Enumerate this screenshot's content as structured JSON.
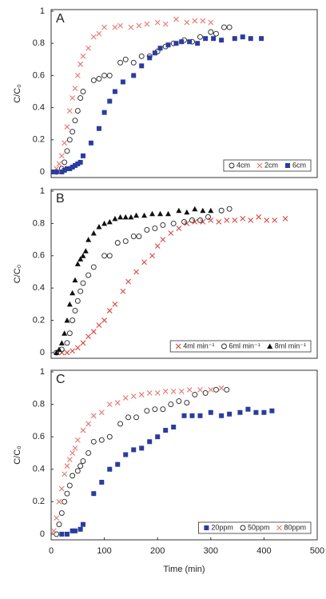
{
  "chart_data": [
    {
      "type": "scatter",
      "annotation": "A",
      "ylabel": "C/C₀",
      "xlim": [
        0,
        500
      ],
      "ylim": [
        -0.035,
        1.01
      ],
      "yticks": [
        0,
        0.2,
        0.4,
        0.6,
        0.8,
        1
      ],
      "legend": "lower right",
      "series": [
        {
          "name": "4cm",
          "marker": "circle",
          "color": "#222222",
          "x": [
            10,
            20,
            25,
            30,
            35,
            40,
            45,
            50,
            55,
            60,
            80,
            90,
            100,
            110,
            130,
            140,
            155,
            170,
            185,
            200,
            215,
            230,
            250,
            265,
            280,
            300,
            310,
            325,
            335
          ],
          "values": [
            0,
            0.02,
            0.06,
            0.13,
            0.2,
            0.25,
            0.32,
            0.38,
            0.46,
            0.5,
            0.57,
            0.58,
            0.6,
            0.6,
            0.68,
            0.7,
            0.68,
            0.72,
            0.72,
            0.75,
            0.78,
            0.8,
            0.82,
            0.81,
            0.84,
            0.87,
            0.86,
            0.9,
            0.9
          ]
        },
        {
          "name": "2cm",
          "marker": "x",
          "color": "#e8756e",
          "x": [
            10,
            15,
            20,
            25,
            30,
            35,
            40,
            45,
            50,
            55,
            60,
            70,
            80,
            90,
            100,
            120,
            130,
            150,
            165,
            180,
            200,
            215,
            235,
            255,
            270,
            285,
            300
          ],
          "values": [
            0.02,
            0.05,
            0.1,
            0.18,
            0.28,
            0.38,
            0.46,
            0.52,
            0.6,
            0.67,
            0.72,
            0.77,
            0.84,
            0.86,
            0.9,
            0.9,
            0.91,
            0.9,
            0.91,
            0.92,
            0.93,
            0.92,
            0.95,
            0.93,
            0.94,
            0.94,
            0.93
          ]
        },
        {
          "name": "6cm",
          "marker": "square",
          "color": "#2b3c9e",
          "x": [
            5,
            10,
            20,
            25,
            30,
            35,
            40,
            45,
            50,
            55,
            60,
            75,
            90,
            100,
            110,
            120,
            135,
            155,
            170,
            185,
            195,
            205,
            220,
            235,
            245,
            260,
            275,
            290,
            305,
            320,
            345,
            360,
            375,
            395
          ],
          "values": [
            0,
            0,
            0,
            0.01,
            0.02,
            0.02,
            0.03,
            0.04,
            0.05,
            0.06,
            0.1,
            0.18,
            0.27,
            0.37,
            0.44,
            0.5,
            0.56,
            0.6,
            0.66,
            0.71,
            0.74,
            0.77,
            0.79,
            0.8,
            0.81,
            0.81,
            0.8,
            0.83,
            0.83,
            0.82,
            0.83,
            0.84,
            0.83,
            0.83
          ]
        }
      ]
    },
    {
      "type": "scatter",
      "annotation": "B",
      "ylabel": "C/C₀",
      "xlim": [
        0,
        500
      ],
      "ylim": [
        -0.035,
        1.01
      ],
      "yticks": [
        0,
        0.2,
        0.4,
        0.6,
        0.8,
        1
      ],
      "legend": "lower right",
      "series": [
        {
          "name": "4ml min⁻¹",
          "marker": "x",
          "color": "#d9463e",
          "x": [
            20,
            30,
            40,
            50,
            60,
            70,
            80,
            90,
            100,
            110,
            120,
            135,
            145,
            160,
            175,
            190,
            200,
            210,
            225,
            240,
            255,
            270,
            285,
            300,
            315,
            330,
            345,
            360,
            375,
            390,
            405,
            420,
            440
          ],
          "values": [
            0,
            0,
            0.01,
            0.03,
            0.06,
            0.1,
            0.13,
            0.17,
            0.2,
            0.26,
            0.3,
            0.38,
            0.44,
            0.5,
            0.56,
            0.6,
            0.66,
            0.7,
            0.74,
            0.77,
            0.8,
            0.81,
            0.81,
            0.82,
            0.81,
            0.82,
            0.82,
            0.83,
            0.82,
            0.84,
            0.82,
            0.82,
            0.83
          ]
        },
        {
          "name": "6ml min⁻¹",
          "marker": "circle",
          "color": "#222222",
          "x": [
            10,
            20,
            30,
            35,
            40,
            45,
            50,
            55,
            60,
            70,
            80,
            100,
            110,
            125,
            140,
            155,
            165,
            180,
            195,
            210,
            230,
            250,
            265,
            280,
            295,
            320,
            335
          ],
          "values": [
            0,
            0.02,
            0.06,
            0.12,
            0.2,
            0.26,
            0.32,
            0.38,
            0.43,
            0.48,
            0.53,
            0.6,
            0.6,
            0.68,
            0.69,
            0.72,
            0.72,
            0.76,
            0.77,
            0.79,
            0.8,
            0.81,
            0.82,
            0.82,
            0.84,
            0.88,
            0.89
          ]
        },
        {
          "name": "8ml min⁻¹",
          "marker": "triangle",
          "color": "#111111",
          "x": [
            10,
            15,
            20,
            25,
            30,
            35,
            40,
            45,
            50,
            55,
            60,
            65,
            70,
            80,
            90,
            100,
            110,
            120,
            130,
            140,
            150,
            160,
            175,
            190,
            205,
            220,
            240,
            255,
            270,
            285,
            300
          ],
          "values": [
            0,
            0.02,
            0.06,
            0.12,
            0.2,
            0.3,
            0.37,
            0.45,
            0.55,
            0.58,
            0.6,
            0.63,
            0.7,
            0.74,
            0.78,
            0.8,
            0.81,
            0.83,
            0.84,
            0.84,
            0.84,
            0.85,
            0.85,
            0.86,
            0.86,
            0.86,
            0.88,
            0.87,
            0.89,
            0.88,
            0.88
          ]
        }
      ]
    },
    {
      "type": "scatter",
      "annotation": "C",
      "ylabel": "C/C₀",
      "xlabel": "Time (min)",
      "xlim": [
        0,
        500
      ],
      "ylim": [
        -0.035,
        1.01
      ],
      "xticks": [
        0,
        100,
        200,
        300,
        400,
        500
      ],
      "yticks": [
        0,
        0.2,
        0.4,
        0.6,
        0.8,
        1
      ],
      "legend": "lower right",
      "series": [
        {
          "name": "20ppm",
          "marker": "square",
          "color": "#2b3c9e",
          "x": [
            20,
            30,
            40,
            45,
            55,
            60,
            80,
            95,
            110,
            125,
            140,
            155,
            170,
            185,
            200,
            215,
            230,
            250,
            265,
            280,
            300,
            320,
            335,
            355,
            370,
            385,
            400,
            415
          ],
          "values": [
            0,
            0,
            0.02,
            0.02,
            0.03,
            0.06,
            0.25,
            0.32,
            0.4,
            0.43,
            0.49,
            0.52,
            0.53,
            0.57,
            0.6,
            0.64,
            0.66,
            0.73,
            0.73,
            0.73,
            0.75,
            0.73,
            0.74,
            0.75,
            0.77,
            0.75,
            0.75,
            0.76
          ]
        },
        {
          "name": "50ppm",
          "marker": "circle",
          "color": "#222222",
          "x": [
            10,
            15,
            20,
            25,
            30,
            35,
            40,
            50,
            55,
            60,
            70,
            80,
            95,
            110,
            130,
            145,
            160,
            180,
            195,
            210,
            225,
            240,
            255,
            270,
            290,
            310,
            330
          ],
          "values": [
            0,
            0.06,
            0.13,
            0.2,
            0.25,
            0.3,
            0.36,
            0.39,
            0.42,
            0.45,
            0.5,
            0.57,
            0.58,
            0.6,
            0.68,
            0.72,
            0.72,
            0.76,
            0.77,
            0.77,
            0.8,
            0.82,
            0.81,
            0.86,
            0.87,
            0.89,
            0.89
          ]
        },
        {
          "name": "80ppm",
          "marker": "x",
          "color": "#e8756e",
          "x": [
            5,
            10,
            15,
            20,
            25,
            30,
            35,
            40,
            45,
            50,
            60,
            70,
            80,
            95,
            110,
            125,
            140,
            155,
            170,
            185,
            200,
            215,
            230,
            245,
            260,
            280,
            300,
            320
          ],
          "values": [
            0.02,
            0.1,
            0.2,
            0.28,
            0.37,
            0.42,
            0.46,
            0.5,
            0.53,
            0.58,
            0.64,
            0.68,
            0.73,
            0.75,
            0.8,
            0.81,
            0.84,
            0.85,
            0.86,
            0.87,
            0.87,
            0.88,
            0.88,
            0.88,
            0.89,
            0.89,
            0.89,
            0.9
          ]
        }
      ]
    }
  ]
}
